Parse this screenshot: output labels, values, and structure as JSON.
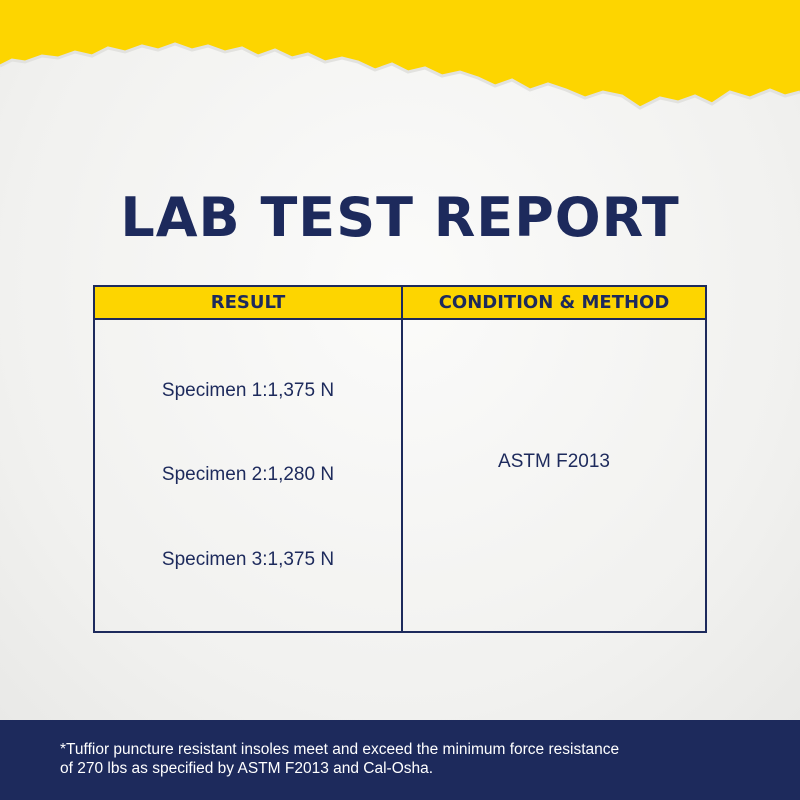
{
  "colors": {
    "accent_yellow": "#fdd500",
    "navy": "#1d2a5c",
    "paper": "#f4f4f2"
  },
  "title": "LAB TEST REPORT",
  "table": {
    "headers": [
      "RESULT",
      "CONDITION & METHOD"
    ],
    "results": [
      "Specimen 1:1,375 N",
      "Specimen 2:1,280 N",
      "Specimen 3:1,375 N"
    ],
    "method": "ASTM F2013"
  },
  "footnote": {
    "line1": "*Tuffior puncture resistant insoles meet and exceed the minimum force resistance",
    "line2": "of 270 lbs as specified by ASTM F2013 and Cal-Osha."
  }
}
